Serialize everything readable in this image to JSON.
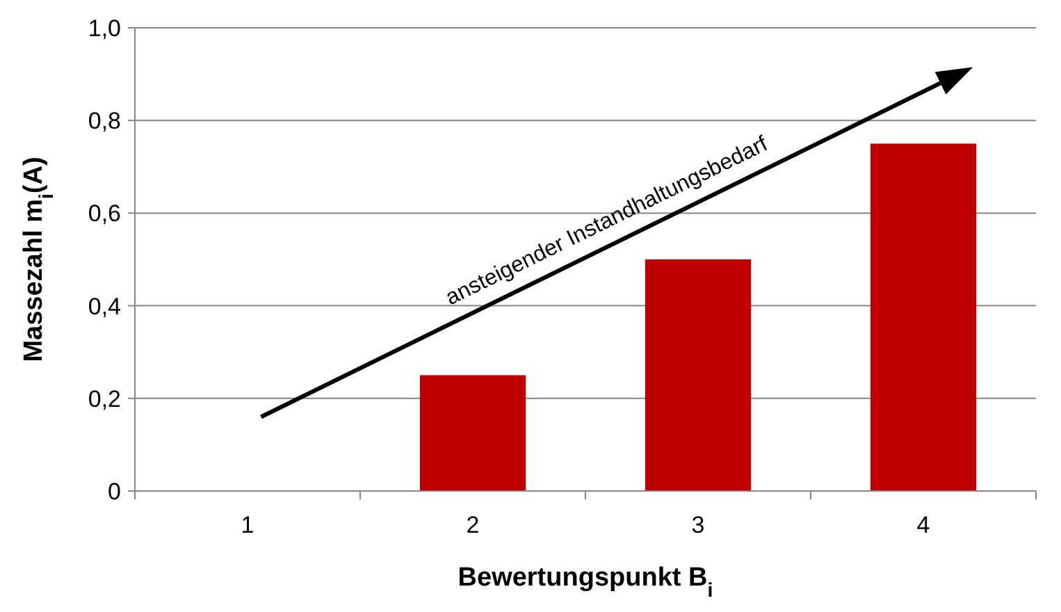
{
  "chart_data": {
    "type": "bar",
    "categories": [
      "1",
      "2",
      "3",
      "4"
    ],
    "values": [
      0,
      0.25,
      0.5,
      0.75
    ],
    "color": "#c00000",
    "ylim": [
      0,
      1
    ],
    "yticks": [
      0,
      {
        "value": 0.2,
        "label": "0,2"
      },
      {
        "value": 0.4,
        "label": "0,4"
      },
      {
        "value": 0.6,
        "label": "0,6"
      },
      {
        "value": 0.8,
        "label": "0,8"
      },
      {
        "value": 1,
        "label": "1,0"
      }
    ],
    "grid": "y",
    "xlabel": "Bewertungspunkt B$_{i}$",
    "ylabel": "Massezahl m$_{i}$(A)",
    "annotations": [
      "ansteigender Instandhaltungsbedarf"
    ]
  }
}
